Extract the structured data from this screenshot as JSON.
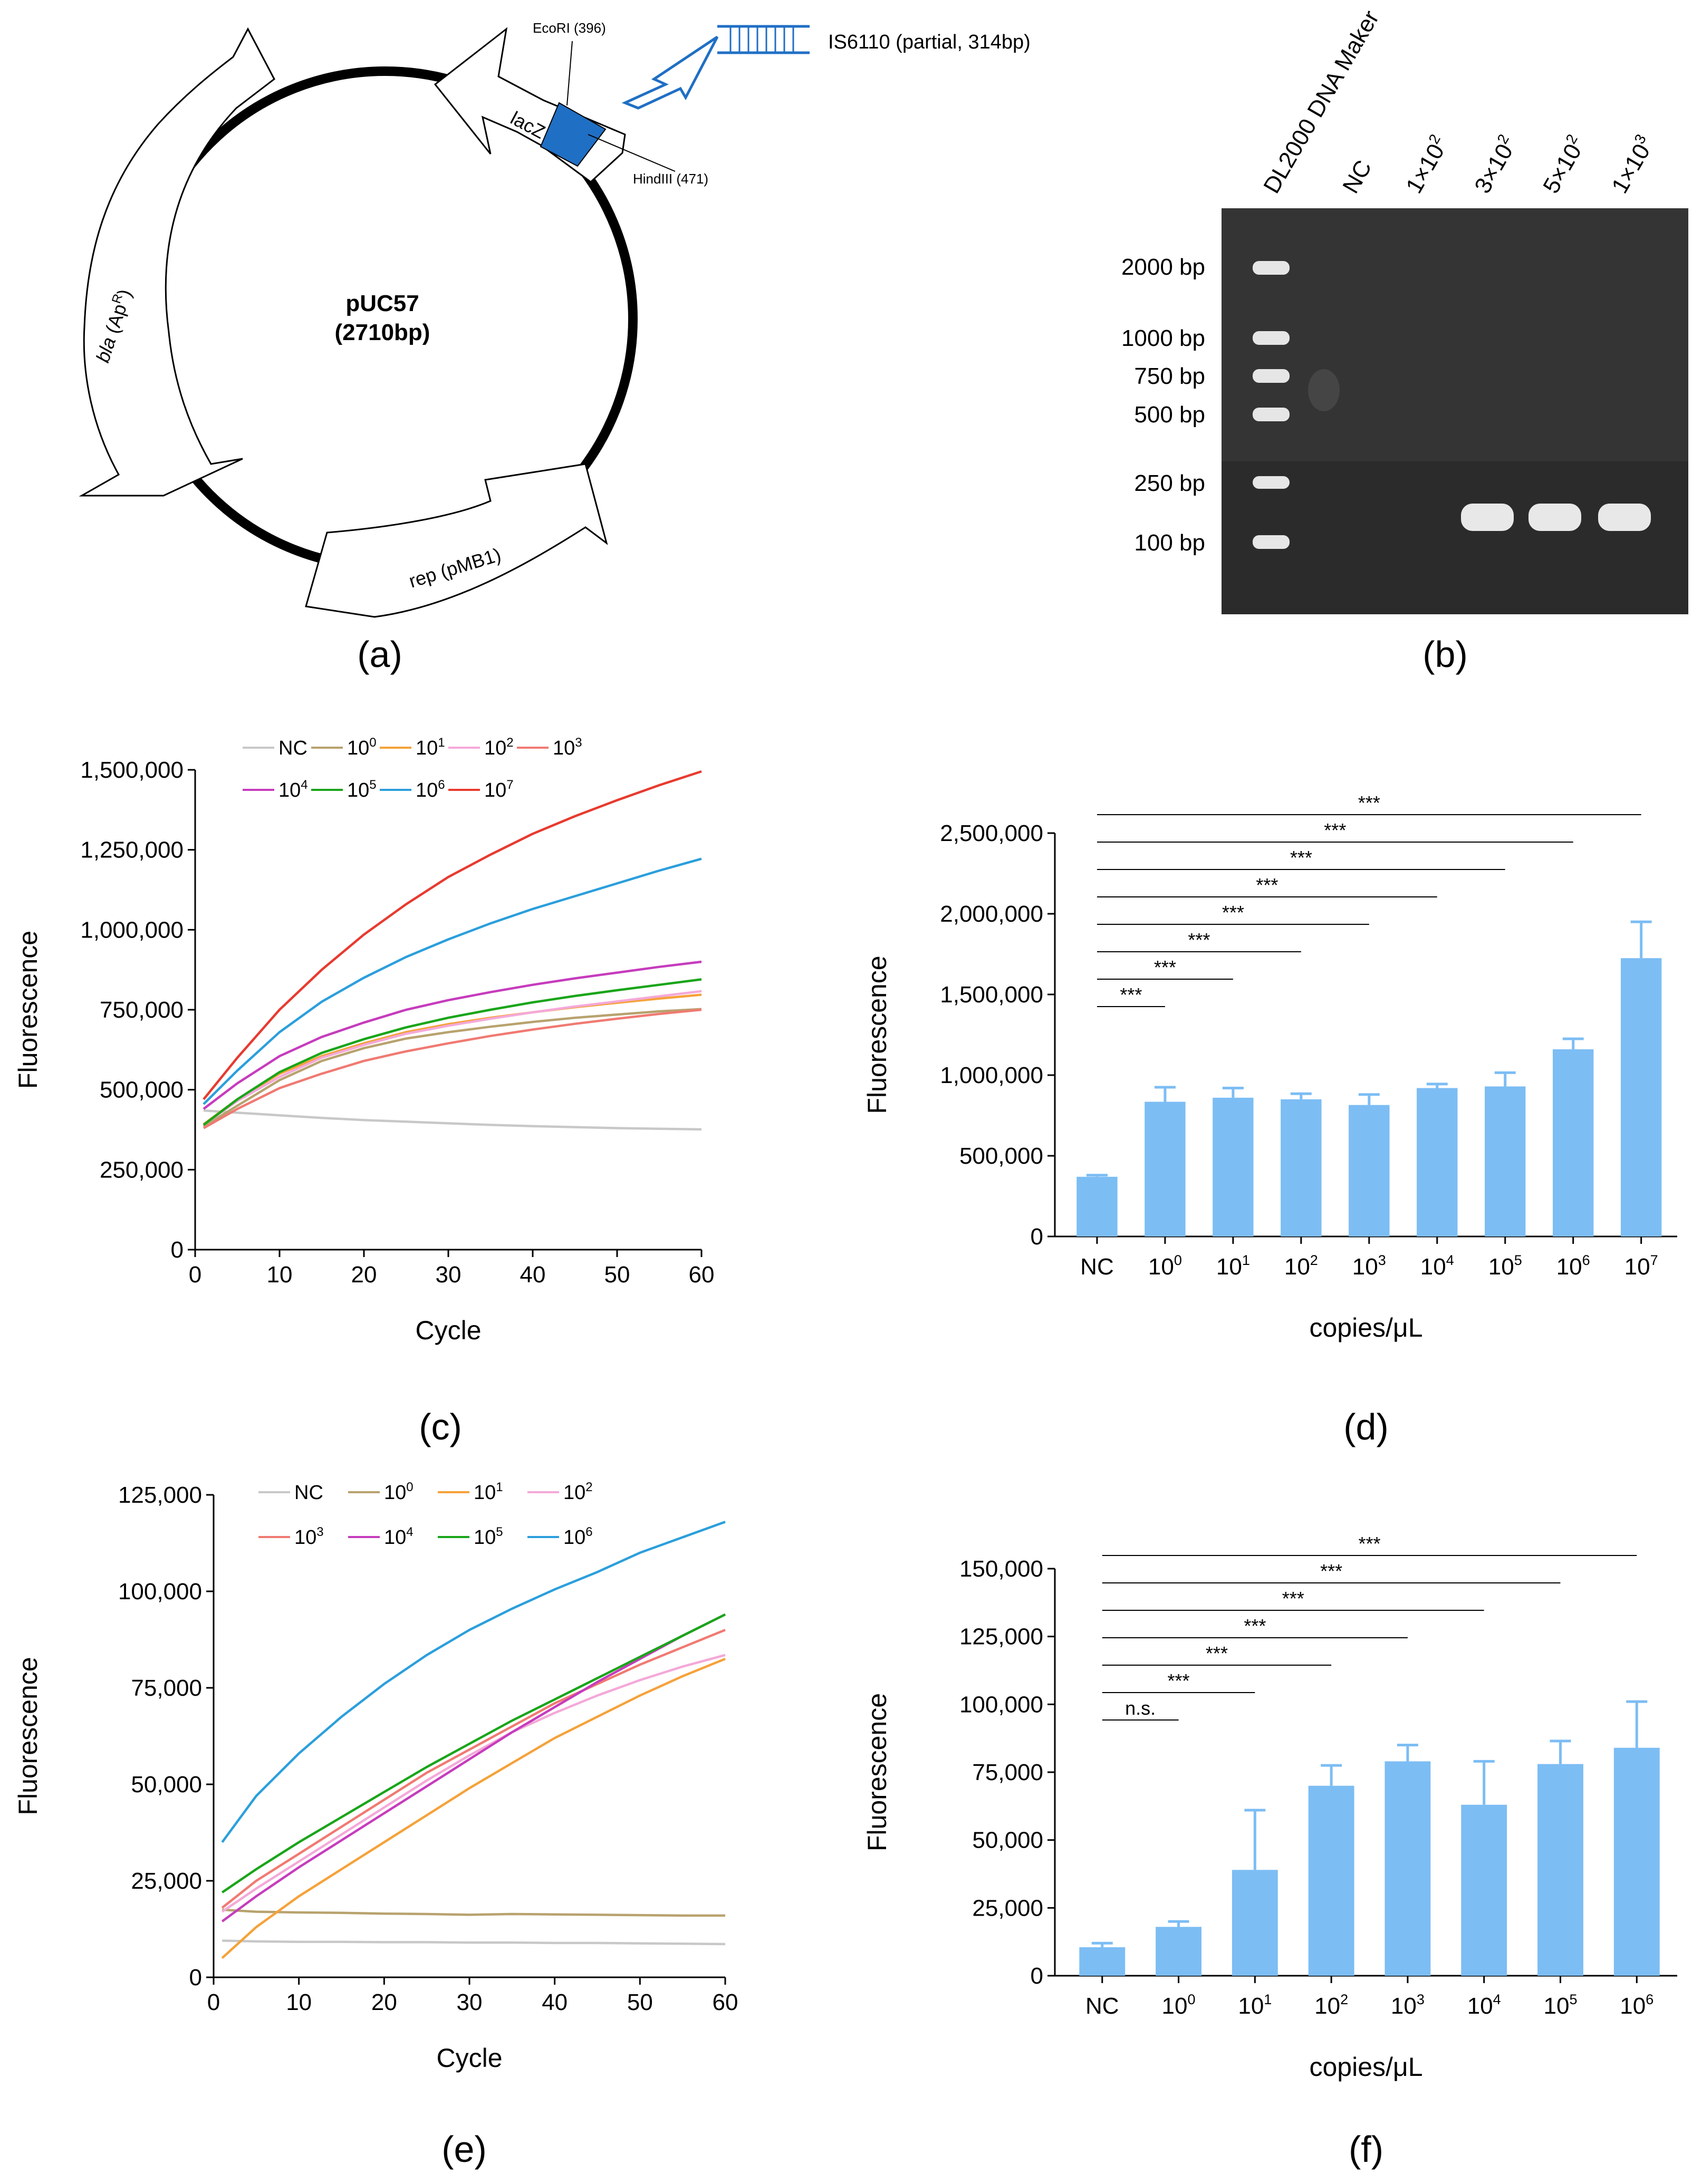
{
  "panels": {
    "a": {
      "letter": "(a)",
      "plasmid_name": "pUC57",
      "plasmid_size": "(2710bp)",
      "features": {
        "bla_main": "bla",
        "bla_paren": "(Ap",
        "bla_sup": "R",
        "bla_close": ")",
        "rep": "rep (pMB1)",
        "lacz": "lacZ"
      },
      "sites": {
        "ecori": "EcoRI (396)",
        "hindiii": "HindIII (471)"
      },
      "insert": "IS6110 (partial, 314bp)",
      "colors": {
        "insert": "#1f6fc4",
        "ring": "#000000"
      }
    },
    "b": {
      "letter": "(b)",
      "lane_labels": [
        {
          "base": "DL2000 DNA Maker",
          "exp": ""
        },
        {
          "base": "NC",
          "exp": ""
        },
        {
          "base": "1×10",
          "exp": "2"
        },
        {
          "base": "3×10",
          "exp": "2"
        },
        {
          "base": "5×10",
          "exp": "2"
        },
        {
          "base": "1×10",
          "exp": "3"
        }
      ],
      "ladder": [
        "2000 bp",
        "1000 bp",
        "750 bp",
        "500 bp",
        "250 bp",
        "100 bp"
      ]
    },
    "c": {
      "letter": "(c)"
    },
    "d": {
      "letter": "(d)"
    },
    "e": {
      "letter": "(e)"
    },
    "f": {
      "letter": "(f)"
    }
  },
  "chart_data": [
    {
      "id": "c",
      "type": "line",
      "xlabel": "Cycle",
      "ylabel": "Fluorescence",
      "xlim": [
        0,
        60
      ],
      "ylim": [
        0,
        1500000
      ],
      "xticks": [
        0,
        10,
        20,
        30,
        40,
        50,
        60
      ],
      "yticks": [
        0,
        250000,
        500000,
        750000,
        1000000,
        1250000,
        1500000
      ],
      "ytick_labels": [
        "0",
        "250,000",
        "500,000",
        "750,000",
        "1,000,000",
        "1,250,000",
        "1,500,000"
      ],
      "x": [
        1,
        5,
        10,
        15,
        20,
        25,
        30,
        35,
        40,
        45,
        50,
        55,
        60
      ],
      "series": [
        {
          "name": "NC",
          "exp": "",
          "color": "#c8c8c8",
          "values": [
            435000,
            428000,
            420000,
            412000,
            405000,
            400000,
            395000,
            390000,
            386000,
            383000,
            380000,
            378000,
            376000
          ]
        },
        {
          "name": "10",
          "exp": "0",
          "color": "#b8a26e",
          "values": [
            385000,
            450000,
            530000,
            590000,
            630000,
            660000,
            680000,
            697000,
            712000,
            725000,
            735000,
            745000,
            752000
          ]
        },
        {
          "name": "10",
          "exp": "1",
          "color": "#f5a23a",
          "values": [
            392000,
            470000,
            550000,
            605000,
            645000,
            680000,
            705000,
            725000,
            742000,
            758000,
            772000,
            785000,
            797000
          ]
        },
        {
          "name": "10",
          "exp": "2",
          "color": "#f4a9d8",
          "values": [
            390000,
            465000,
            540000,
            600000,
            640000,
            675000,
            700000,
            722000,
            742000,
            760000,
            776000,
            792000,
            808000
          ]
        },
        {
          "name": "10",
          "exp": "3",
          "color": "#f07a72",
          "values": [
            380000,
            440000,
            505000,
            550000,
            590000,
            620000,
            645000,
            668000,
            688000,
            706000,
            722000,
            737000,
            750000
          ]
        },
        {
          "name": "10",
          "exp": "4",
          "color": "#c63cbd",
          "values": [
            440000,
            520000,
            605000,
            665000,
            710000,
            750000,
            780000,
            805000,
            828000,
            848000,
            866000,
            884000,
            900000
          ]
        },
        {
          "name": "10",
          "exp": "5",
          "color": "#1aa51a",
          "values": [
            390000,
            470000,
            555000,
            615000,
            658000,
            695000,
            725000,
            750000,
            773000,
            793000,
            811000,
            828000,
            845000
          ]
        },
        {
          "name": "10",
          "exp": "6",
          "color": "#2b9fdc",
          "values": [
            455000,
            560000,
            680000,
            775000,
            850000,
            915000,
            970000,
            1020000,
            1065000,
            1105000,
            1145000,
            1185000,
            1222000
          ]
        },
        {
          "name": "10",
          "exp": "7",
          "color": "#e83a2f",
          "values": [
            470000,
            600000,
            750000,
            875000,
            985000,
            1080000,
            1165000,
            1235000,
            1300000,
            1355000,
            1405000,
            1452000,
            1495000
          ]
        }
      ]
    },
    {
      "id": "d",
      "type": "bar",
      "xlabel": "copies/μL",
      "ylabel": "Fluorescence",
      "ylim": [
        0,
        2500000
      ],
      "yticks": [
        0,
        500000,
        1000000,
        1500000,
        2000000,
        2500000
      ],
      "ytick_labels": [
        "0",
        "500,000",
        "1,000,000",
        "1,500,000",
        "2,000,000",
        "2,500,000"
      ],
      "categories": [
        {
          "base": "NC",
          "exp": ""
        },
        {
          "base": "10",
          "exp": "0"
        },
        {
          "base": "10",
          "exp": "1"
        },
        {
          "base": "10",
          "exp": "2"
        },
        {
          "base": "10",
          "exp": "3"
        },
        {
          "base": "10",
          "exp": "4"
        },
        {
          "base": "10",
          "exp": "5"
        },
        {
          "base": "10",
          "exp": "6"
        },
        {
          "base": "10",
          "exp": "7"
        }
      ],
      "values": [
        370000,
        835000,
        860000,
        850000,
        815000,
        920000,
        930000,
        1160000,
        1725000
      ],
      "errors": [
        10000,
        90000,
        60000,
        35000,
        65000,
        25000,
        85000,
        65000,
        225000
      ],
      "bar_color": "#7cbdf4",
      "significance": [
        {
          "to": 1,
          "label": "***"
        },
        {
          "to": 2,
          "label": "***"
        },
        {
          "to": 3,
          "label": "***"
        },
        {
          "to": 4,
          "label": "***"
        },
        {
          "to": 5,
          "label": "***"
        },
        {
          "to": 6,
          "label": "***"
        },
        {
          "to": 7,
          "label": "***"
        },
        {
          "to": 8,
          "label": "***"
        }
      ]
    },
    {
      "id": "e",
      "type": "line",
      "xlabel": "Cycle",
      "ylabel": "Fluorescence",
      "xlim": [
        0,
        60
      ],
      "ylim": [
        0,
        125000
      ],
      "xticks": [
        0,
        10,
        20,
        30,
        40,
        50,
        60
      ],
      "yticks": [
        0,
        25000,
        50000,
        75000,
        100000,
        125000
      ],
      "ytick_labels": [
        "0",
        "25,000",
        "50,000",
        "75,000",
        "100,000",
        "125,000"
      ],
      "x": [
        1,
        5,
        10,
        15,
        20,
        25,
        30,
        35,
        40,
        45,
        50,
        55,
        60
      ],
      "series": [
        {
          "name": "NC",
          "exp": "",
          "color": "#c8c8c8",
          "values": [
            9500,
            9300,
            9200,
            9200,
            9100,
            9100,
            9000,
            9000,
            8900,
            8900,
            8800,
            8700,
            8600
          ]
        },
        {
          "name": "10",
          "exp": "0",
          "color": "#b8a26e",
          "values": [
            17500,
            17000,
            16800,
            16700,
            16500,
            16400,
            16200,
            16400,
            16300,
            16200,
            16100,
            16000,
            16000
          ]
        },
        {
          "name": "10",
          "exp": "1",
          "color": "#f5a23a",
          "values": [
            5000,
            13000,
            21000,
            28000,
            35000,
            42000,
            49000,
            55500,
            62000,
            67500,
            73000,
            78000,
            82500
          ]
        },
        {
          "name": "10",
          "exp": "2",
          "color": "#f4a9d8",
          "values": [
            17000,
            23000,
            30000,
            37000,
            44000,
            51000,
            57500,
            63500,
            68500,
            73000,
            77000,
            80500,
            83500
          ]
        },
        {
          "name": "10",
          "exp": "3",
          "color": "#f07a72",
          "values": [
            18000,
            25000,
            32000,
            39000,
            46000,
            53000,
            59000,
            65000,
            71000,
            76000,
            81000,
            85500,
            90000
          ]
        },
        {
          "name": "10",
          "exp": "4",
          "color": "#c63cbd",
          "values": [
            14500,
            21000,
            28500,
            35500,
            42500,
            49500,
            56500,
            63500,
            70000,
            76500,
            82500,
            88500,
            94000
          ]
        },
        {
          "name": "10",
          "exp": "5",
          "color": "#1aa51a",
          "values": [
            22000,
            28000,
            35000,
            41500,
            48000,
            54500,
            60500,
            66500,
            72000,
            77500,
            83000,
            88500,
            94000
          ]
        },
        {
          "name": "10",
          "exp": "6",
          "color": "#2b9fdc",
          "values": [
            35000,
            47000,
            58000,
            67500,
            76000,
            83500,
            90000,
            95500,
            100500,
            105000,
            110000,
            114000,
            118000
          ]
        }
      ]
    },
    {
      "id": "f",
      "type": "bar",
      "xlabel": "copies/μL",
      "ylabel": "Fluorescence",
      "ylim": [
        0,
        150000
      ],
      "yticks": [
        0,
        25000,
        50000,
        75000,
        100000,
        125000,
        150000
      ],
      "ytick_labels": [
        "0",
        "25,000",
        "50,000",
        "75,000",
        "100,000",
        "125,000",
        "150,000"
      ],
      "categories": [
        {
          "base": "NC",
          "exp": ""
        },
        {
          "base": "10",
          "exp": "0"
        },
        {
          "base": "10",
          "exp": "1"
        },
        {
          "base": "10",
          "exp": "2"
        },
        {
          "base": "10",
          "exp": "3"
        },
        {
          "base": "10",
          "exp": "4"
        },
        {
          "base": "10",
          "exp": "5"
        },
        {
          "base": "10",
          "exp": "6"
        }
      ],
      "values": [
        10500,
        18000,
        39000,
        70000,
        79000,
        63000,
        78000,
        84000
      ],
      "errors": [
        1500,
        2000,
        22000,
        7500,
        6000,
        16000,
        8500,
        17000
      ],
      "bar_color": "#7cbdf4",
      "significance": [
        {
          "to": 1,
          "label": "n.s."
        },
        {
          "to": 2,
          "label": "***"
        },
        {
          "to": 3,
          "label": "***"
        },
        {
          "to": 4,
          "label": "***"
        },
        {
          "to": 5,
          "label": "***"
        },
        {
          "to": 6,
          "label": "***"
        },
        {
          "to": 7,
          "label": "***"
        }
      ]
    }
  ]
}
